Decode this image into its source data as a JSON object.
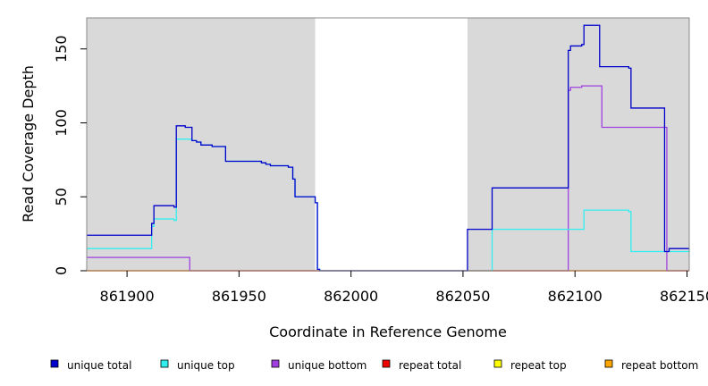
{
  "chart_data": {
    "type": "line",
    "step": true,
    "xlabel": "Coordinate in Reference Genome",
    "ylabel": "Read Coverage Depth",
    "xlim": [
      861882,
      862151
    ],
    "ylim": [
      0,
      171
    ],
    "x_ticks": [
      861900,
      861950,
      862000,
      862050,
      862100,
      862150
    ],
    "x_tick_labels": [
      "861900",
      "861950",
      "862000",
      "862050",
      "862100",
      "862150"
    ],
    "y_ticks": [
      0,
      50,
      100,
      150
    ],
    "y_tick_labels": [
      "0",
      "50",
      "100",
      "150"
    ],
    "shaded_regions": [
      [
        861882,
        861984
      ],
      [
        862052,
        862151
      ]
    ],
    "colors": {
      "shade": "#d9d9d9",
      "frame": "#888888",
      "unique_total": "#0000cc",
      "unique_top": "#33eeee",
      "unique_bottom": "#a040e0",
      "repeat_total": "#ee0000",
      "repeat_top": "#ffff00",
      "repeat_bottom": "#ffa500",
      "overlap": "#2080ff"
    },
    "series": [
      {
        "name": "unique total",
        "color": "#0000cc",
        "x": [
          861882,
          861911,
          861912,
          861921,
          861922,
          861926,
          861929,
          861931,
          861933,
          861938,
          861944,
          861960,
          861962,
          861964,
          861972,
          861974,
          861975,
          861984,
          861985,
          861986,
          862052,
          862063,
          862097,
          862098,
          862103,
          862104,
          862111,
          862124,
          862125,
          862140,
          862142,
          862151
        ],
        "y": [
          24,
          32,
          44,
          43,
          98,
          97,
          88,
          87,
          85,
          84,
          74,
          73,
          72,
          71,
          70,
          62,
          50,
          46,
          1,
          0,
          28,
          56,
          149,
          152,
          153,
          166,
          138,
          137,
          110,
          13,
          15,
          15
        ]
      },
      {
        "name": "unique top",
        "color": "#33eeee",
        "x": [
          861882,
          861911,
          861912,
          861921,
          861922,
          861926,
          861929,
          861931,
          861933,
          861938,
          861944,
          861960,
          861962,
          861964,
          861972,
          861974,
          861975,
          861984,
          861985,
          861986,
          862052,
          862063,
          862097,
          862098,
          862104,
          862124,
          862125,
          862151
        ],
        "y": [
          15,
          30,
          35,
          34,
          89,
          89,
          88,
          87,
          85,
          84,
          74,
          73,
          72,
          71,
          70,
          62,
          50,
          46,
          1,
          0,
          0,
          28,
          28,
          28,
          41,
          40,
          13,
          15
        ]
      },
      {
        "name": "unique bottom",
        "color": "#a040e0",
        "x": [
          861882,
          861928,
          862097,
          862098,
          862103,
          862112,
          862141,
          862151
        ],
        "y": [
          9,
          0,
          122,
          124,
          125,
          97,
          0,
          0
        ]
      },
      {
        "name": "repeat total",
        "color": "#ee0000",
        "x": [
          861882,
          862151
        ],
        "y": [
          0,
          0
        ]
      },
      {
        "name": "repeat top",
        "color": "#ffff00",
        "x": [
          861882,
          862151
        ],
        "y": [
          0,
          0
        ]
      },
      {
        "name": "repeat bottom",
        "color": "#ffa500",
        "x": [
          861882,
          862151
        ],
        "y": [
          0,
          0
        ]
      }
    ]
  }
}
